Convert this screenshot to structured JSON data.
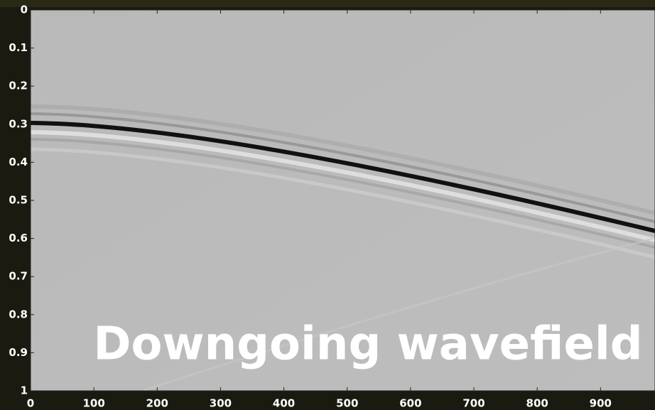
{
  "chart_data": {
    "type": "image",
    "annotation": "Downgoing wavefield",
    "xlim": [
      0,
      986
    ],
    "xticks": [
      0,
      100,
      200,
      300,
      400,
      500,
      600,
      700,
      800,
      900
    ],
    "ylim": [
      0,
      1
    ],
    "yticks": [
      0,
      0.1,
      0.2,
      0.3,
      0.4,
      0.5,
      0.6,
      0.7,
      0.8,
      0.9,
      1
    ],
    "y_reversed": true
  }
}
